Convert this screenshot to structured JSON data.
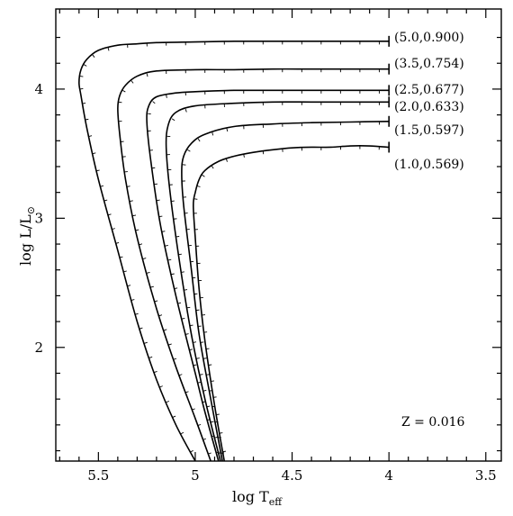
{
  "chart_data": {
    "type": "line",
    "xlabel_main": "log T",
    "xlabel_sub": "eff",
    "ylabel_main": "log L/L",
    "ylabel_symbol": "⊙",
    "xlim": [
      5.72,
      3.42
    ],
    "ylim": [
      1.12,
      4.62
    ],
    "x_ticks": [
      "5.5",
      "5",
      "4.5",
      "4",
      "3.5"
    ],
    "x_tick_values": [
      5.5,
      5.0,
      4.5,
      4.0,
      3.5
    ],
    "y_ticks": [
      "2",
      "3",
      "4"
    ],
    "y_tick_values": [
      2,
      3,
      4
    ],
    "annotation": "Z = 0.016",
    "grid": false,
    "series": [
      {
        "name": "(5.0,0.900)",
        "x": [
          5.0,
          5.1,
          5.2,
          5.3,
          5.4,
          5.5,
          5.56,
          5.59,
          5.6,
          5.59,
          5.56,
          5.5,
          5.4,
          5.3,
          5.2,
          5.0,
          4.8,
          4.6,
          4.4,
          4.2,
          4.0
        ],
        "y": [
          1.12,
          1.4,
          1.75,
          2.2,
          2.75,
          3.3,
          3.7,
          3.95,
          4.05,
          4.15,
          4.23,
          4.3,
          4.34,
          4.35,
          4.36,
          4.365,
          4.37,
          4.37,
          4.37,
          4.37,
          4.37
        ]
      },
      {
        "name": "(3.5,0.754)",
        "x": [
          4.92,
          5.0,
          5.1,
          5.2,
          5.3,
          5.36,
          5.39,
          5.4,
          5.39,
          5.36,
          5.3,
          5.2,
          5.0,
          4.8,
          4.6,
          4.4,
          4.2,
          4.0
        ],
        "y": [
          1.12,
          1.45,
          1.85,
          2.3,
          2.85,
          3.3,
          3.65,
          3.85,
          3.95,
          4.03,
          4.1,
          4.14,
          4.15,
          4.15,
          4.155,
          4.155,
          4.155,
          4.155
        ]
      },
      {
        "name": "(2.5,0.677)",
        "x": [
          4.88,
          4.95,
          5.0,
          5.1,
          5.18,
          5.23,
          5.25,
          5.24,
          5.2,
          5.1,
          5.0,
          4.8,
          4.6,
          4.4,
          4.2,
          4.0
        ],
        "y": [
          1.12,
          1.5,
          1.8,
          2.4,
          2.95,
          3.45,
          3.75,
          3.87,
          3.94,
          3.97,
          3.98,
          3.99,
          3.99,
          3.99,
          3.99,
          3.99
        ]
      },
      {
        "name": "(2.0,0.633)",
        "x": [
          4.87,
          4.95,
          5.02,
          5.08,
          5.13,
          5.15,
          5.14,
          5.1,
          5.0,
          4.8,
          4.6,
          4.4,
          4.2,
          4.0
        ],
        "y": [
          1.12,
          1.6,
          2.1,
          2.65,
          3.2,
          3.55,
          3.72,
          3.82,
          3.87,
          3.89,
          3.9,
          3.9,
          3.9,
          3.9
        ]
      },
      {
        "name": "(1.5,0.597)",
        "x": [
          4.86,
          4.92,
          4.98,
          5.02,
          5.06,
          5.07,
          5.06,
          5.02,
          4.95,
          4.8,
          4.6,
          4.4,
          4.2,
          4.0
        ],
        "y": [
          1.12,
          1.6,
          2.1,
          2.6,
          3.1,
          3.35,
          3.48,
          3.58,
          3.65,
          3.71,
          3.73,
          3.74,
          3.745,
          3.75
        ]
      },
      {
        "name": "(1.0,0.569)",
        "x": [
          4.85,
          4.9,
          4.95,
          4.98,
          5.0,
          5.01,
          5.0,
          4.98,
          4.95,
          4.88,
          4.8,
          4.7,
          4.6,
          4.5,
          4.4,
          4.3,
          4.2,
          4.1,
          4.0
        ],
        "y": [
          1.12,
          1.55,
          2.05,
          2.45,
          2.85,
          3.1,
          3.2,
          3.3,
          3.37,
          3.44,
          3.48,
          3.51,
          3.53,
          3.545,
          3.55,
          3.55,
          3.56,
          3.56,
          3.55
        ]
      }
    ]
  }
}
